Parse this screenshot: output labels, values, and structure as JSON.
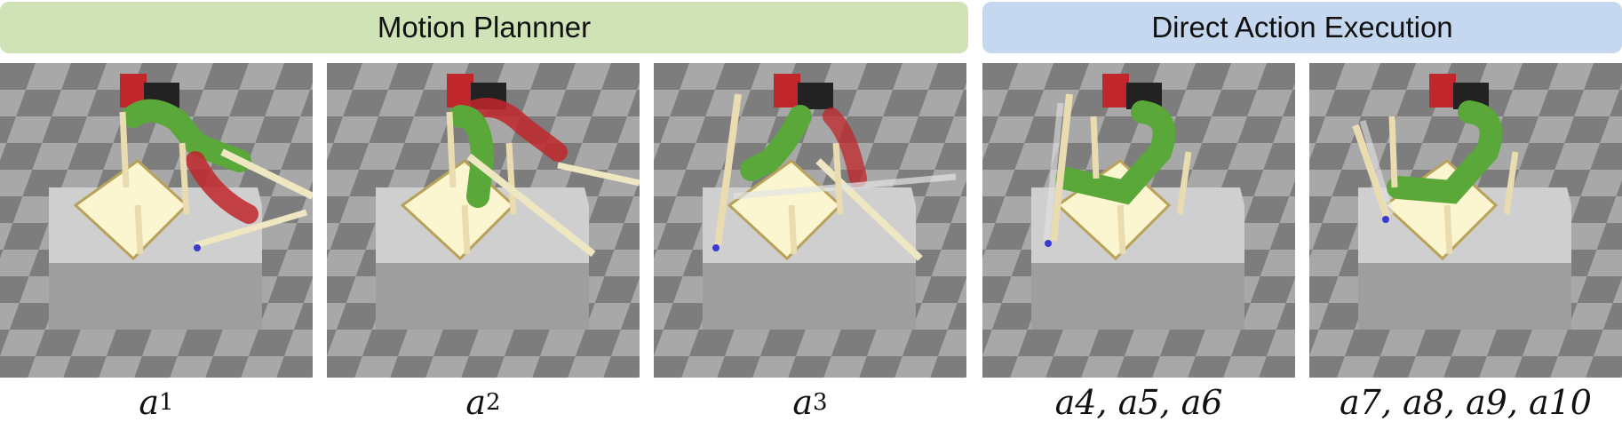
{
  "groups": {
    "motion_planner": "Motion Plannner",
    "direct_action": "Direct Action Execution"
  },
  "panels": [
    {
      "caption_prefix": "a",
      "caption": "1"
    },
    {
      "caption_prefix": "a",
      "caption": "2"
    },
    {
      "caption_prefix": "a",
      "caption": "3"
    },
    {
      "caption": "a4, a5, a6"
    },
    {
      "caption": "a7, a8, a9, a10"
    }
  ],
  "colors": {
    "motion_planner_banner": "#cfe3b6",
    "direct_action_banner": "#c5d8ef",
    "robot_arm_green": "#5aa83a",
    "robot_arm_red": "#c0262b",
    "peg": "#e8dcb0",
    "board": "#fbf6cf"
  }
}
